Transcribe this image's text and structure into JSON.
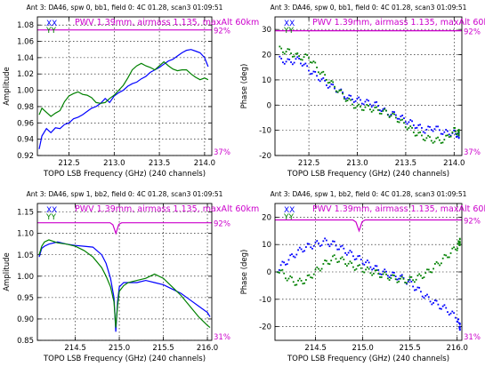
{
  "chart_data": [
    {
      "type": "line",
      "title": "Ant 3: DA46,   spw 0, bb1,  field 0: 4C 01.28,  scan3  01:09:51",
      "xlabel": "TOPO LSB Frequency (GHz) (240 channels)",
      "ylabel": "Amplitude",
      "xlim": [
        212.15,
        214.08
      ],
      "ylim": [
        0.92,
        1.09
      ],
      "xticks": [
        "212.5",
        "213.0",
        "213.5",
        "214.0"
      ],
      "yticks": [
        "0.92",
        "0.94",
        "0.96",
        "0.98",
        "1.00",
        "1.02",
        "1.04",
        "1.06",
        "1.08"
      ],
      "grid": true,
      "legend": [
        "XX",
        "YY"
      ],
      "annotation": "PWV 1.39mm, airmass 1.135, maxAlt 60km",
      "atm_right_top": "92%",
      "atm_right_bottom": "37%",
      "atm": {
        "level": 1.074,
        "dip": null
      },
      "series": [
        {
          "name": "XX",
          "color": "#0000ff",
          "style": "line",
          "x": [
            212.17,
            212.2,
            212.25,
            212.3,
            212.35,
            212.4,
            212.45,
            212.5,
            212.55,
            212.6,
            212.65,
            212.7,
            212.75,
            212.8,
            212.85,
            212.9,
            212.95,
            213.0,
            213.05,
            213.1,
            213.15,
            213.2,
            213.25,
            213.3,
            213.35,
            213.4,
            213.45,
            213.5,
            213.55,
            213.6,
            213.65,
            213.7,
            213.75,
            213.8,
            213.85,
            213.9,
            213.95,
            214.0,
            214.04
          ],
          "y": [
            0.928,
            0.944,
            0.953,
            0.948,
            0.954,
            0.953,
            0.958,
            0.96,
            0.965,
            0.967,
            0.97,
            0.974,
            0.978,
            0.98,
            0.984,
            0.99,
            0.985,
            0.993,
            0.997,
            1.0,
            1.005,
            1.008,
            1.01,
            1.014,
            1.017,
            1.022,
            1.025,
            1.028,
            1.032,
            1.036,
            1.038,
            1.042,
            1.046,
            1.049,
            1.05,
            1.048,
            1.046,
            1.04,
            1.029
          ]
        },
        {
          "name": "YY",
          "color": "#008000",
          "style": "line",
          "x": [
            212.17,
            212.2,
            212.25,
            212.3,
            212.35,
            212.4,
            212.45,
            212.5,
            212.55,
            212.6,
            212.65,
            212.7,
            212.75,
            212.8,
            212.85,
            212.9,
            212.95,
            213.0,
            213.05,
            213.1,
            213.15,
            213.2,
            213.25,
            213.3,
            213.35,
            213.4,
            213.45,
            213.5,
            213.55,
            213.6,
            213.65,
            213.7,
            213.75,
            213.8,
            213.85,
            213.9,
            213.95,
            214.0,
            214.04
          ],
          "y": [
            0.97,
            0.978,
            0.973,
            0.968,
            0.972,
            0.975,
            0.986,
            0.993,
            0.996,
            0.998,
            0.995,
            0.994,
            0.991,
            0.985,
            0.984,
            0.985,
            0.99,
            0.994,
            1.0,
            1.006,
            1.015,
            1.025,
            1.03,
            1.033,
            1.03,
            1.028,
            1.025,
            1.03,
            1.035,
            1.03,
            1.026,
            1.024,
            1.025,
            1.025,
            1.02,
            1.016,
            1.013,
            1.015,
            1.013
          ]
        }
      ]
    },
    {
      "type": "scatter",
      "title": "Ant 3: DA46,   spw 0, bb1,  field 0: 4C 01.28,  scan3  01:09:51",
      "xlabel": "TOPO LSB Frequency (GHz) (240 channels)",
      "ylabel": "Phase (deg)",
      "xlim": [
        212.15,
        214.08
      ],
      "ylim": [
        -20,
        35
      ],
      "xticks": [
        "212.5",
        "213.0",
        "213.5",
        "214.0"
      ],
      "yticks": [
        "-20",
        "-10",
        "0",
        "10",
        "20",
        "30"
      ],
      "grid": true,
      "legend": [
        "XX",
        "YY"
      ],
      "annotation": "PWV 1.39mm, airmass 1.135, maxAlt 60km",
      "atm_right_top": "92%",
      "atm_right_bottom": "37%",
      "atm": {
        "level": 29.5,
        "dip": null
      },
      "series": [
        {
          "name": "XX",
          "color": "#0000ff",
          "style": "dots",
          "x": [
            212.2,
            212.3,
            212.4,
            212.5,
            212.6,
            212.7,
            212.8,
            212.9,
            213.0,
            213.1,
            213.2,
            213.3,
            213.4,
            213.5,
            213.6,
            213.7,
            213.8,
            213.9,
            214.0,
            214.05
          ],
          "y": [
            18,
            17,
            18,
            14,
            11,
            8,
            6,
            3,
            2,
            1,
            0,
            -3,
            -4,
            -6,
            -8,
            -10,
            -9,
            -11,
            -11,
            -12
          ]
        },
        {
          "name": "YY",
          "color": "#008000",
          "style": "dots",
          "x": [
            212.2,
            212.3,
            212.4,
            212.5,
            212.6,
            212.7,
            212.8,
            212.9,
            213.0,
            213.1,
            213.2,
            213.3,
            213.4,
            213.5,
            213.6,
            213.7,
            213.8,
            213.9,
            214.0,
            214.05
          ],
          "y": [
            22,
            21,
            19,
            19,
            14,
            10,
            6,
            2,
            -1,
            -1,
            -2,
            -3,
            -5,
            -8,
            -11,
            -13,
            -14,
            -14,
            -10,
            -11
          ]
        }
      ]
    },
    {
      "type": "line",
      "title": "Ant 3: DA46,   spw 1, bb2,  field 0: 4C 01.28,  scan3  01:09:51",
      "xlabel": "TOPO LSB Frequency (GHz) (240 channels)",
      "ylabel": "Amplitude",
      "xlim": [
        214.07,
        216.05
      ],
      "ylim": [
        0.85,
        1.17
      ],
      "xticks": [
        "214.5",
        "215.0",
        "215.5",
        "216.0"
      ],
      "yticks": [
        "0.85",
        "0.90",
        "0.95",
        "1.00",
        "1.05",
        "1.10",
        "1.15"
      ],
      "grid": true,
      "legend": [
        "XX",
        "YY"
      ],
      "annotation": "PWV 1.39mm, airmass 1.135, maxAlt 60km",
      "atm_right_top": "92%",
      "atm_right_bottom": "31%",
      "atm": {
        "level": 1.125,
        "dip": {
          "x": 214.96,
          "y": 1.1,
          "width": 0.05
        }
      },
      "series": [
        {
          "name": "XX",
          "color": "#0000ff",
          "style": "line",
          "x": [
            214.09,
            214.12,
            214.15,
            214.2,
            214.3,
            214.4,
            214.5,
            214.6,
            214.7,
            214.8,
            214.85,
            214.9,
            214.94,
            214.96,
            214.98,
            215.0,
            215.05,
            215.1,
            215.2,
            215.3,
            215.4,
            215.5,
            215.6,
            215.7,
            215.8,
            215.9,
            216.0,
            216.03
          ],
          "y": [
            1.045,
            1.065,
            1.07,
            1.075,
            1.08,
            1.075,
            1.072,
            1.07,
            1.068,
            1.05,
            1.03,
            0.995,
            0.95,
            0.87,
            0.94,
            0.975,
            0.985,
            0.985,
            0.985,
            0.99,
            0.985,
            0.98,
            0.97,
            0.96,
            0.945,
            0.93,
            0.915,
            0.905
          ]
        },
        {
          "name": "YY",
          "color": "#008000",
          "style": "line",
          "x": [
            214.09,
            214.12,
            214.15,
            214.2,
            214.3,
            214.4,
            214.5,
            214.6,
            214.7,
            214.8,
            214.85,
            214.9,
            214.94,
            214.96,
            214.98,
            215.0,
            215.05,
            215.1,
            215.2,
            215.3,
            215.4,
            215.5,
            215.6,
            215.7,
            215.8,
            215.9,
            216.0,
            216.03
          ],
          "y": [
            1.05,
            1.07,
            1.08,
            1.085,
            1.078,
            1.075,
            1.07,
            1.06,
            1.045,
            1.02,
            1.0,
            0.975,
            0.94,
            0.88,
            0.93,
            0.965,
            0.978,
            0.985,
            0.99,
            0.995,
            1.005,
            0.995,
            0.975,
            0.955,
            0.93,
            0.905,
            0.885,
            0.88
          ]
        }
      ]
    },
    {
      "type": "scatter",
      "title": "Ant 3: DA46,   spw 1, bb2,  field 0: 4C 01.28,  scan3  01:09:51",
      "xlabel": "TOPO LSB Frequency (GHz) (240 channels)",
      "ylabel": "Phase (deg)",
      "xlim": [
        214.07,
        216.05
      ],
      "ylim": [
        -25,
        25
      ],
      "xticks": [
        "214.5",
        "215.0",
        "215.5",
        "216.0"
      ],
      "yticks": [
        "-20",
        "-10",
        "0",
        "10",
        "20"
      ],
      "grid": true,
      "legend": [
        "XX",
        "YY"
      ],
      "annotation": "PWV 1.39mm, airmass 1.135, maxAlt 60km",
      "atm_right_top": "92%",
      "atm_right_bottom": "31%",
      "atm": {
        "level": 19,
        "dip": {
          "x": 214.96,
          "y": 15,
          "width": 0.05
        }
      },
      "series": [
        {
          "name": "XX",
          "color": "#0000ff",
          "style": "dots",
          "x": [
            214.1,
            214.2,
            214.3,
            214.4,
            214.5,
            214.6,
            214.7,
            214.8,
            214.9,
            215.0,
            215.1,
            215.2,
            215.3,
            215.4,
            215.5,
            215.6,
            215.7,
            215.8,
            215.9,
            216.0,
            216.03
          ],
          "y": [
            1,
            4,
            7,
            9,
            10,
            11,
            10,
            8,
            6,
            4,
            2,
            0,
            -1,
            -2,
            -4,
            -7,
            -10,
            -12,
            -14,
            -17,
            -20
          ]
        },
        {
          "name": "YY",
          "color": "#008000",
          "style": "dots",
          "x": [
            214.1,
            214.2,
            214.3,
            214.4,
            214.5,
            214.6,
            214.7,
            214.8,
            214.9,
            215.0,
            215.1,
            215.2,
            215.3,
            215.4,
            215.5,
            215.6,
            215.7,
            215.8,
            215.9,
            216.0,
            216.03
          ],
          "y": [
            1,
            -2,
            -4,
            -3,
            0,
            3,
            5,
            4,
            2,
            1,
            0,
            -1,
            -2,
            -3,
            -3,
            -2,
            0,
            3,
            6,
            9,
            11
          ]
        }
      ]
    }
  ]
}
